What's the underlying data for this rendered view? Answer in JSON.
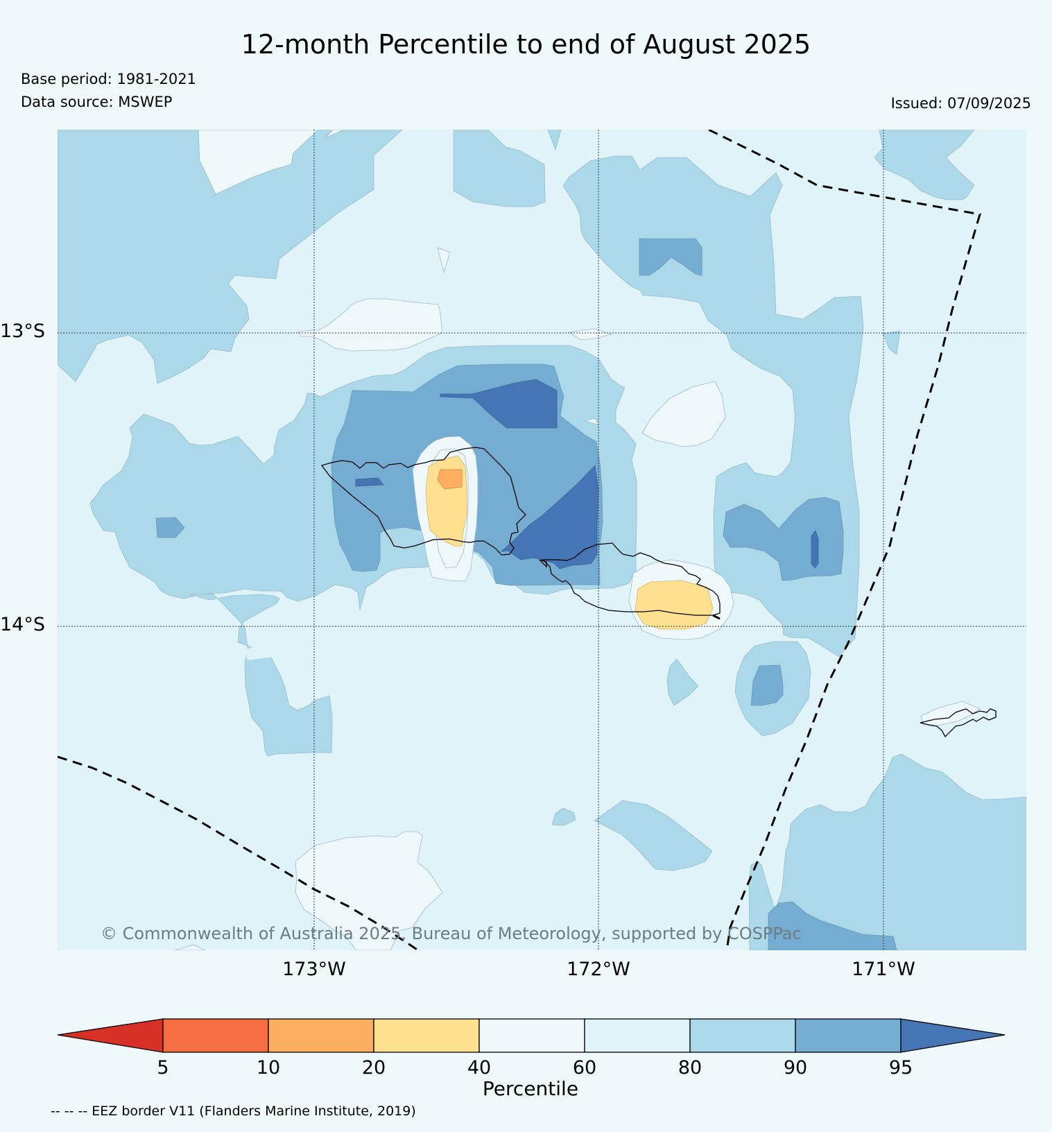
{
  "title": "12-month Percentile to end of August 2025",
  "base_period": "Base period: 1981-2021",
  "data_source": "Data source: MSWEP",
  "issued": "Issued: 07/09/2025",
  "copyright": "© Commonwealth of Australia 2025, Bureau of Meteorology, supported by COSPPac",
  "axes": {
    "lat_labels": [
      "13°S",
      "14°S"
    ],
    "lon_labels": [
      "173°W",
      "172°W",
      "171°W"
    ]
  },
  "colorbar": {
    "label": "Percentile",
    "ticks": [
      "5",
      "10",
      "20",
      "40",
      "60",
      "80",
      "90",
      "95"
    ],
    "colors": {
      "below_5": "#d73027",
      "5_10": "#f46d43",
      "10_20": "#fdae61",
      "20_40": "#fee090",
      "40_60": "#eef7fa",
      "60_80": "#e0f3f8",
      "80_90": "#abd9e9",
      "90_95": "#74add1",
      "above_95": "#4575b4"
    }
  },
  "legend_note": "-- -- -- EEZ border V11 (Flanders Marine Institute, 2019)"
}
